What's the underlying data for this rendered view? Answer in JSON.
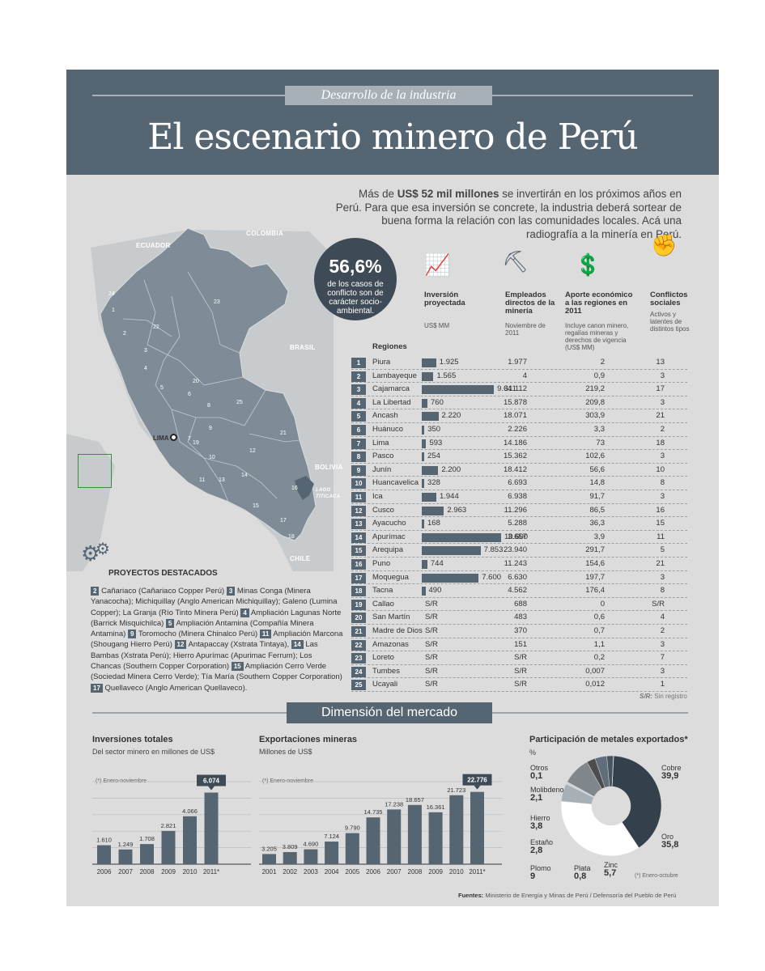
{
  "header": {
    "kicker": "Desarrollo de la industria",
    "title": "El escenario minero de Perú"
  },
  "intro": {
    "pre": "Más de ",
    "bold": "US$ 52 mil millones",
    "post": " se invertirán en los próximos años en Perú. Para que esa inversión se concrete, la industria deberá sortear de buena forma la relación con las comunidades locales. Acá una radiografía a la minería en Perú."
  },
  "badge": {
    "value": "56,6%",
    "text": "de los casos de conflicto son de carácter socio-ambiental."
  },
  "map": {
    "labels": [
      "ECUADOR",
      "COLOMBIA",
      "BRASIL",
      "BOLIVIA",
      "CHILE",
      "LAGO TITICACA"
    ],
    "lima": "LIMA"
  },
  "columns": {
    "inversion": {
      "title": "Inversión proyectada",
      "sub": "US$ MM"
    },
    "empleados": {
      "title": "Empleados directos de la minería",
      "sub": "Noviembre de 2011"
    },
    "aporte": {
      "title": "Aporte económico a las regiones en 2011",
      "sub": "Incluye canon minero, regalías mineras y derechos de vigencia (US$ MM)"
    },
    "conflictos": {
      "title": "Conflictos sociales",
      "sub": "Activos y latentes de distintos tipos"
    }
  },
  "regiones_label": "Regiones",
  "regions": [
    {
      "n": "1",
      "name": "Piura",
      "inv": "1.925",
      "v": 1925,
      "emp": "1.977",
      "apo": "2",
      "con": "13"
    },
    {
      "n": "2",
      "name": "Lambayeque",
      "inv": "1.565",
      "v": 1565,
      "emp": "4",
      "apo": "0,9",
      "con": "3"
    },
    {
      "n": "3",
      "name": "Cajamarca",
      "inv": "9.641",
      "v": 9641,
      "emp": "31.112",
      "apo": "219,2",
      "con": "17"
    },
    {
      "n": "4",
      "name": "La Libertad",
      "inv": "760",
      "v": 760,
      "emp": "15.878",
      "apo": "209,8",
      "con": "3"
    },
    {
      "n": "5",
      "name": "Ancash",
      "inv": "2.220",
      "v": 2220,
      "emp": "18.071",
      "apo": "303,9",
      "con": "21"
    },
    {
      "n": "6",
      "name": "Huánuco",
      "inv": "350",
      "v": 350,
      "emp": "2.226",
      "apo": "3,3",
      "con": "2"
    },
    {
      "n": "7",
      "name": "Lima",
      "inv": "593",
      "v": 593,
      "emp": "14.186",
      "apo": "73",
      "con": "18"
    },
    {
      "n": "8",
      "name": "Pasco",
      "inv": "254",
      "v": 254,
      "emp": "15.362",
      "apo": "102,6",
      "con": "3"
    },
    {
      "n": "9",
      "name": "Junín",
      "inv": "2.200",
      "v": 2200,
      "emp": "18.412",
      "apo": "56,6",
      "con": "10"
    },
    {
      "n": "10",
      "name": "Huancavelica",
      "inv": "328",
      "v": 328,
      "emp": "6.693",
      "apo": "14,8",
      "con": "8"
    },
    {
      "n": "11",
      "name": "Ica",
      "inv": "1.944",
      "v": 1944,
      "emp": "6.938",
      "apo": "91,7",
      "con": "3"
    },
    {
      "n": "12",
      "name": "Cusco",
      "inv": "2.963",
      "v": 2963,
      "emp": "11.296",
      "apo": "86,5",
      "con": "16"
    },
    {
      "n": "13",
      "name": "Ayacucho",
      "inv": "168",
      "v": 168,
      "emp": "5.288",
      "apo": "36,3",
      "con": "15"
    },
    {
      "n": "14",
      "name": "Apurímac",
      "inv": "10.600",
      "v": 10600,
      "emp": "3.657",
      "apo": "3,9",
      "con": "11"
    },
    {
      "n": "15",
      "name": "Arequipa",
      "inv": "7.853",
      "v": 7853,
      "emp": "23.940",
      "apo": "291,7",
      "con": "5"
    },
    {
      "n": "16",
      "name": "Puno",
      "inv": "744",
      "v": 744,
      "emp": "11.243",
      "apo": "154,6",
      "con": "21"
    },
    {
      "n": "17",
      "name": "Moquegua",
      "inv": "7.600",
      "v": 7600,
      "emp": "6.630",
      "apo": "197,7",
      "con": "3"
    },
    {
      "n": "18",
      "name": "Tacna",
      "inv": "490",
      "v": 490,
      "emp": "4.562",
      "apo": "176,4",
      "con": "8"
    },
    {
      "n": "19",
      "name": "Callao",
      "inv": "S/R",
      "v": 0,
      "emp": "688",
      "apo": "0",
      "con": "S/R"
    },
    {
      "n": "20",
      "name": "San Martín",
      "inv": "S/R",
      "v": 0,
      "emp": "483",
      "apo": "0,6",
      "con": "4"
    },
    {
      "n": "21",
      "name": "Madre de Dios",
      "inv": "S/R",
      "v": 0,
      "emp": "370",
      "apo": "0,7",
      "con": "2"
    },
    {
      "n": "22",
      "name": "Amazonas",
      "inv": "S/R",
      "v": 0,
      "emp": "151",
      "apo": "1,1",
      "con": "3"
    },
    {
      "n": "23",
      "name": "Loreto",
      "inv": "S/R",
      "v": 0,
      "emp": "S/R",
      "apo": "0,2",
      "con": "7"
    },
    {
      "n": "24",
      "name": "Tumbes",
      "inv": "S/R",
      "v": 0,
      "emp": "S/R",
      "apo": "0,007",
      "con": "3"
    },
    {
      "n": "25",
      "name": "Ucayali",
      "inv": "S/R",
      "v": 0,
      "emp": "S/R",
      "apo": "0,012",
      "con": "1"
    }
  ],
  "sr_note": {
    "key": "S/R:",
    "text": " Sin registro"
  },
  "projects": {
    "title": "PROYECTOS DESTACADOS",
    "items": [
      {
        "n": "2",
        "text": " Cañariaco (Cañariaco Copper Perú) "
      },
      {
        "n": "3",
        "text": " Minas Conga (Minera Yanacocha); Michiquillay (Anglo American Michiquillay); Galeno (Lumina Copper); La Granja (Río Tinto Minera Perú) "
      },
      {
        "n": "4",
        "text": " Ampliación Lagunas Norte (Barrick Misquichilca) "
      },
      {
        "n": "5",
        "text": " Ampliación Antamina (Compañía Minera Antamina) "
      },
      {
        "n": "9",
        "text": " Toromocho (Minera Chinalco Perú) "
      },
      {
        "n": "11",
        "text": " Ampliación Marcona (Shougang Hierro Perú) "
      },
      {
        "n": "12",
        "text": " Antapaccay (Xstrata Tintaya), "
      },
      {
        "n": "14",
        "text": " Las Bambas (Xstrata Perú); Hierro Apurímac (Apurimac Ferrum); Los Chancas (Southern Copper Corporation) "
      },
      {
        "n": "15",
        "text": " Ampliación Cerro Verde (Sociedad Minera Cerro Verde); Tía María (Southern Copper Corporation) "
      },
      {
        "n": "17",
        "text": " Quellaveco (Anglo American Quellaveco)."
      }
    ]
  },
  "market_title": "Dimensión del mercado",
  "chart_data": [
    {
      "type": "bar",
      "title": "Inversiones totales",
      "subtitle": "Del sector minero en millones de US$",
      "note": "(*) Enero-noviembre",
      "categories": [
        "2006",
        "2007",
        "2008",
        "2009",
        "2010",
        "2011*"
      ],
      "values": [
        1610,
        1249,
        1708,
        2821,
        4066,
        6074
      ],
      "labels": [
        "1.610",
        "1.249",
        "1.708",
        "2.821",
        "4.066",
        "6.074"
      ],
      "ylim": [
        0,
        7000
      ]
    },
    {
      "type": "bar",
      "title": "Exportaciones mineras",
      "subtitle": "Millones de US$",
      "note": "(*) Enero-noviembre",
      "categories": [
        "2001",
        "2002",
        "2003",
        "2004",
        "2005",
        "2006",
        "2007",
        "2008",
        "2009",
        "2010",
        "2011*"
      ],
      "values": [
        3205,
        3809,
        4690,
        7124,
        9790,
        14735,
        17238,
        18657,
        16361,
        21723,
        22776
      ],
      "labels": [
        "3.205",
        "3.809",
        "4.690",
        "7.124",
        "9.790",
        "14.735",
        "17.238",
        "18.657",
        "16.361",
        "21.723",
        "22.776"
      ],
      "ylim": [
        0,
        26000
      ]
    },
    {
      "type": "pie",
      "title": "Participación de metales exportados*",
      "subtitle": "%",
      "note": "(*) Enero-octubre",
      "slices": [
        {
          "name": "Cobre",
          "value": 39.9,
          "label": "39,9",
          "color": "#34414c"
        },
        {
          "name": "Oro",
          "value": 35.8,
          "label": "35,8",
          "color": "#ffffff"
        },
        {
          "name": "Zinc",
          "value": 5.7,
          "label": "5,7",
          "color": "#a7b0b7"
        },
        {
          "name": "Plata",
          "value": 0.8,
          "label": "0,8",
          "color": "#d0d4d7"
        },
        {
          "name": "Plomo",
          "value": 9,
          "label": "9",
          "color": "#7f878d"
        },
        {
          "name": "Estaño",
          "value": 2.8,
          "label": "2,8",
          "color": "#4d4d4d"
        },
        {
          "name": "Hierro",
          "value": 3.8,
          "label": "3,8",
          "color": "#5f6e7a"
        },
        {
          "name": "Molibdeno",
          "value": 2.1,
          "label": "2,1",
          "color": "#465561"
        },
        {
          "name": "Otros",
          "value": 0.1,
          "label": "0,1",
          "color": "#222222"
        }
      ]
    }
  ],
  "sources": {
    "key": "Fuentes:",
    "text": " Ministerio de Energía y Minas de Perú / Defensoría del Pueblo de Perú"
  },
  "colors": {
    "slate": "#566572",
    "panel": "#dcdcdc",
    "dark": "#3e4a55"
  }
}
